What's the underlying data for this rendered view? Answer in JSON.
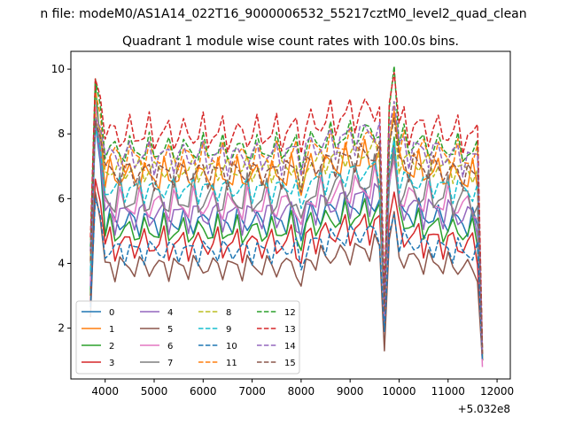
{
  "chart_data": {
    "type": "line",
    "suptitle": "n file: modeM0/AS1A14_022T16_9000006532_55217cztM0_level2_quad_clean",
    "title": "Quadrant 1 module wise count rates with 100.0s bins.",
    "xlabel": "",
    "ylabel": "",
    "x_offset_label": "+5.032e8",
    "x": [
      3700,
      3800,
      3900,
      4000,
      4100,
      4200,
      4300,
      4400,
      4500,
      4600,
      4700,
      4800,
      4900,
      5000,
      5100,
      5200,
      5300,
      5400,
      5500,
      5600,
      5700,
      5800,
      5900,
      6000,
      6100,
      6200,
      6300,
      6400,
      6500,
      6600,
      6700,
      6800,
      6900,
      7000,
      7100,
      7200,
      7300,
      7400,
      7500,
      7600,
      7700,
      7800,
      7900,
      8000,
      8100,
      8200,
      8300,
      8400,
      8500,
      8600,
      8700,
      8800,
      8900,
      9000,
      9100,
      9200,
      9300,
      9400,
      9500,
      9600,
      9700,
      9800,
      9900,
      10000,
      10100,
      10200,
      10300,
      10400,
      10500,
      10600,
      10700,
      10800,
      10900,
      11000,
      11100,
      11200,
      11300,
      11400,
      11500,
      11600,
      11700
    ],
    "xticks": [
      4000,
      5000,
      6000,
      7000,
      8000,
      9000,
      10000,
      11000,
      12000
    ],
    "xtick_labels": [
      "4000",
      "5000",
      "6000",
      "7000",
      "8000",
      "9000",
      "10000",
      "11000",
      "12000"
    ],
    "yticks": [
      2,
      4,
      6,
      8,
      10
    ],
    "ytick_labels": [
      "2",
      "4",
      "6",
      "8",
      "10"
    ],
    "xlim": [
      3300,
      12270
    ],
    "ylim": [
      0.43,
      10.55
    ],
    "legend_position": "lower-left",
    "legend_columns": 4,
    "series": [
      {
        "name": "0",
        "color": "#1f77b4",
        "dash": "solid",
        "base": 5.3,
        "peak": 8.3,
        "ep": 7.5,
        "amp": 0.35,
        "offset": 0.05,
        "mid": 3.2,
        "end": 1.0,
        "trend": 0.3
      },
      {
        "name": "1",
        "color": "#ff7f0e",
        "dash": "solid",
        "base": 6.7,
        "peak": 8.8,
        "ep": 8.7,
        "amp": 0.4,
        "offset": 0.12,
        "mid": 1.9,
        "end": 1.1,
        "trend": 0.3
      },
      {
        "name": "2",
        "color": "#2ca02c",
        "dash": "solid",
        "base": 5.0,
        "peak": 9.6,
        "ep": 7.9,
        "amp": 0.35,
        "offset": 0.19,
        "mid": 2.4,
        "end": 1.0,
        "trend": 0.3
      },
      {
        "name": "3",
        "color": "#d62728",
        "dash": "solid",
        "base": 4.6,
        "peak": 6.6,
        "ep": 6.2,
        "amp": 0.4,
        "offset": 0.26,
        "mid": 2.9,
        "end": 1.0,
        "trend": 0.3
      },
      {
        "name": "4",
        "color": "#9467bd",
        "dash": "solid",
        "base": 5.5,
        "peak": 8.4,
        "ep": 7.6,
        "amp": 0.4,
        "offset": 0.33,
        "mid": 2.2,
        "end": 1.2,
        "trend": 0.3
      },
      {
        "name": "5",
        "color": "#8c564b",
        "dash": "solid",
        "base": 3.9,
        "peak": 6.2,
        "ep": 5.6,
        "amp": 0.3,
        "offset": 0.4,
        "mid": 1.3,
        "end": 1.0,
        "trend": 0.3
      },
      {
        "name": "6",
        "color": "#e377c2",
        "dash": "solid",
        "base": 5.8,
        "peak": 9.0,
        "ep": 7.2,
        "amp": 0.4,
        "offset": 0.47,
        "mid": 2.4,
        "end": 0.8,
        "trend": 0.3
      },
      {
        "name": "7",
        "color": "#7f7f7f",
        "dash": "solid",
        "base": 6.0,
        "peak": 8.5,
        "ep": 7.4,
        "amp": 0.5,
        "offset": 0.54,
        "mid": 2.6,
        "end": 1.2,
        "trend": 0.3
      },
      {
        "name": "8",
        "color": "#bcbd22",
        "dash": "dashed",
        "base": 6.9,
        "peak": 8.6,
        "ep": 8.5,
        "amp": 0.3,
        "offset": 0.61,
        "mid": 2.6,
        "end": 1.1,
        "trend": 0.3
      },
      {
        "name": "9",
        "color": "#17becf",
        "dash": "dashed",
        "base": 6.3,
        "peak": 8.2,
        "ep": 7.8,
        "amp": 0.3,
        "offset": 0.68,
        "mid": 2.5,
        "end": 1.1,
        "trend": 0.3
      },
      {
        "name": "10",
        "color": "#1f77b4",
        "dash": "dashed",
        "base": 4.4,
        "peak": 6.0,
        "ep": 5.5,
        "amp": 0.3,
        "offset": 0.75,
        "mid": 1.9,
        "end": 1.0,
        "trend": 0.3
      },
      {
        "name": "11",
        "color": "#ff7f0e",
        "dash": "dashed",
        "base": 7.3,
        "peak": 9.3,
        "ep": 8.9,
        "amp": 0.35,
        "offset": 0.82,
        "mid": 2.6,
        "end": 1.2,
        "trend": 0.3
      },
      {
        "name": "12",
        "color": "#2ca02c",
        "dash": "dashed",
        "base": 7.5,
        "peak": 9.7,
        "ep": 10.1,
        "amp": 0.35,
        "offset": 0.89,
        "mid": 2.7,
        "end": 1.3,
        "trend": 0.3
      },
      {
        "name": "13",
        "color": "#d62728",
        "dash": "dashed",
        "base": 8.0,
        "peak": 9.7,
        "ep": 9.9,
        "amp": 0.45,
        "offset": 0.96,
        "mid": 3.1,
        "end": 1.4,
        "trend": 0.4
      },
      {
        "name": "14",
        "color": "#9467bd",
        "dash": "dashed",
        "base": 7.3,
        "peak": 8.5,
        "ep": 9.0,
        "amp": 0.4,
        "offset": 1.03,
        "mid": 2.5,
        "end": 1.2,
        "trend": 0.4
      },
      {
        "name": "15",
        "color": "#8c564b",
        "dash": "dashed",
        "base": 6.8,
        "peak": 8.4,
        "ep": 8.5,
        "amp": 0.35,
        "offset": 1.1,
        "mid": 2.5,
        "end": 1.2,
        "trend": 0.3
      }
    ]
  }
}
